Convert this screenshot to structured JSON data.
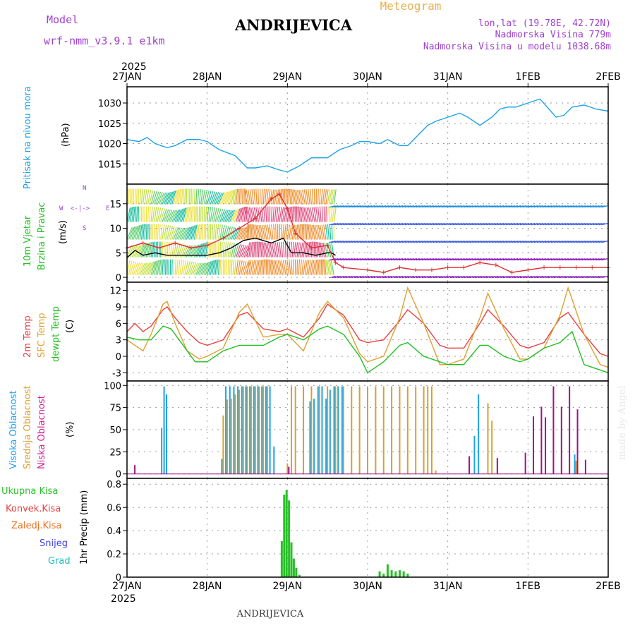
{
  "header": {
    "model_label": "Model",
    "model_name": "wrf-nmm_v3.9.1 e1km",
    "title": "ANDRIJEVICA",
    "subtitle": "Meteogram",
    "location": "lon,lat (19.78E, 42.72N)",
    "elevation": "Nadmorska Visina 779m",
    "model_elevation": "Nadmorska Visina u modelu 1038.68m",
    "watermark": "made by Angel",
    "footer": "ANDRIJEVICA"
  },
  "colors": {
    "pressure": "#1fa2e8",
    "wind_speed": "#000000",
    "wind_gust": "#e03030",
    "temp_2m": "#e84040",
    "temp_sfc": "#e0a030",
    "temp_dewpt": "#20c020",
    "cloud_high": "#1fa2e8",
    "cloud_mid": "#d8a030",
    "cloud_low": "#a0108a",
    "precip_total": "#28c028",
    "precip_conv": "#e03030",
    "precip_frz": "#f07020",
    "precip_snow": "#4040e0",
    "precip_grad": "#20c0c0",
    "label_purple": "#a040d0",
    "label_orange": "#e8b050"
  },
  "chart_data": {
    "time_axis": {
      "year_label": "2025",
      "ticks": [
        "27JAN",
        "28JAN",
        "29JAN",
        "30JAN",
        "31JAN",
        "1FEB",
        "2FEB"
      ],
      "range_days": [
        0,
        6
      ]
    },
    "panels": [
      {
        "id": "pressure",
        "type": "line",
        "labels": [
          "Pritisak na nivou mora",
          "(hPa)"
        ],
        "ylim": [
          1010,
          1034
        ],
        "yticks": [
          1015,
          1020,
          1025,
          1030
        ],
        "grid": true,
        "series": [
          {
            "x": [
              0,
              0.15,
              0.25,
              0.35,
              0.5,
              0.6,
              0.75,
              0.9,
              1.0,
              1.15,
              1.35,
              1.5,
              1.6,
              1.75,
              1.9,
              2.0,
              2.15,
              2.3,
              2.5,
              2.65,
              2.8,
              2.9,
              3.0,
              3.15,
              3.25,
              3.4,
              3.5,
              3.6,
              3.75,
              3.85,
              4.0,
              4.15,
              4.25,
              4.4,
              4.55,
              4.65,
              4.75,
              4.85,
              5.0,
              5.15,
              5.35,
              5.45,
              5.55,
              5.7,
              5.85,
              6.0
            ],
            "values": [
              1021,
              1020.5,
              1021.5,
              1020,
              1019,
              1019.5,
              1021,
              1021,
              1020.5,
              1018.5,
              1017,
              1014,
              1014,
              1014.5,
              1013.5,
              1013,
              1014.5,
              1016.5,
              1016.5,
              1018.5,
              1019.5,
              1020.5,
              1020.5,
              1020,
              1021,
              1019.5,
              1019.5,
              1021.5,
              1024.5,
              1025.5,
              1026.5,
              1027.5,
              1026.5,
              1024.5,
              1026.5,
              1028.5,
              1029,
              1029,
              1030,
              1031,
              1026.5,
              1027,
              1029,
              1029.5,
              1028.5,
              1028
            ]
          }
        ]
      },
      {
        "id": "wind",
        "type": "line",
        "labels": [
          "10m Vjetar",
          "Brzina i Pravac",
          "(m/s)"
        ],
        "compass": [
          "N",
          "W",
          "E",
          "S"
        ],
        "ylim": [
          -1,
          19
        ],
        "yticks": [
          0,
          5,
          10,
          15
        ],
        "grid": true,
        "series": [
          {
            "name": "speed",
            "x": [
              0,
              0.1,
              0.2,
              0.35,
              0.5,
              0.7,
              0.85,
              1.0,
              1.15,
              1.3,
              1.45,
              1.6,
              1.8,
              1.95,
              2.05,
              2.2,
              2.35,
              2.5,
              2.55,
              2.6
            ],
            "values": [
              4,
              5.5,
              4.5,
              5,
              4.5,
              4.5,
              4.5,
              4.5,
              5,
              6,
              7.5,
              8,
              7,
              8,
              5,
              5,
              4.5,
              5,
              5,
              4.5
            ]
          },
          {
            "name": "gust",
            "x": [
              0,
              0.2,
              0.4,
              0.6,
              0.8,
              1.0,
              1.2,
              1.4,
              1.6,
              1.8,
              1.9,
              2.0,
              2.1,
              2.3,
              2.5,
              2.6,
              2.7,
              3.0,
              3.2,
              3.4,
              3.6,
              3.8,
              4.0,
              4.2,
              4.4,
              4.6,
              4.8,
              5.0,
              5.2,
              5.4,
              5.6,
              5.8,
              6.0
            ],
            "values": [
              6,
              7,
              6,
              7,
              6,
              6.5,
              8,
              10,
              12,
              16,
              17,
              14,
              9,
              6,
              6.5,
              3,
              2,
              1.5,
              1,
              2,
              1.5,
              1.5,
              2,
              2,
              3,
              2.5,
              1,
              1.5,
              2,
              2,
              2,
              2,
              2
            ]
          }
        ]
      },
      {
        "id": "temperature",
        "type": "line",
        "labels": [
          "2m Temp",
          "SFC Temp",
          "dewpt Temp",
          "(C)"
        ],
        "ylim": [
          -4.5,
          13.5
        ],
        "yticks": [
          -3,
          0,
          3,
          6,
          9,
          12
        ],
        "grid": true,
        "series": [
          {
            "name": "2m Temp",
            "x": [
              0,
              0.1,
              0.2,
              0.3,
              0.45,
              0.5,
              0.6,
              0.75,
              0.9,
              1.0,
              1.2,
              1.4,
              1.5,
              1.7,
              1.9,
              2.0,
              2.2,
              2.4,
              2.5,
              2.7,
              2.9,
              3.0,
              3.2,
              3.4,
              3.5,
              3.7,
              3.9,
              4.0,
              4.2,
              4.4,
              4.5,
              4.7,
              4.9,
              5.0,
              5.2,
              5.4,
              5.5,
              5.7,
              5.9,
              6.0
            ],
            "values": [
              4.5,
              6,
              4.5,
              5.5,
              8.5,
              9,
              7,
              4.5,
              2.5,
              2,
              3,
              7.5,
              8,
              5,
              4.5,
              5,
              3.5,
              7,
              9.5,
              7.5,
              3,
              2.5,
              3,
              6.5,
              8.5,
              6,
              2,
              1.5,
              1.5,
              6,
              8.5,
              5.5,
              2,
              1.5,
              2.5,
              7,
              8,
              4,
              0.5,
              0
            ]
          },
          {
            "name": "SFC Temp",
            "x": [
              0,
              0.1,
              0.2,
              0.3,
              0.45,
              0.5,
              0.6,
              0.75,
              0.9,
              1.0,
              1.2,
              1.4,
              1.5,
              1.7,
              1.9,
              2.0,
              2.2,
              2.4,
              2.5,
              2.7,
              2.9,
              3.0,
              3.2,
              3.4,
              3.5,
              3.7,
              3.9,
              4.0,
              4.2,
              4.4,
              4.5,
              4.7,
              4.9,
              5.0,
              5.2,
              5.4,
              5.5,
              5.7,
              5.9,
              6.0
            ],
            "values": [
              3,
              2,
              1,
              4,
              9.5,
              10,
              6,
              1,
              -0.5,
              0,
              1.5,
              8,
              9.5,
              3.5,
              4,
              4,
              1,
              8,
              10,
              7,
              0.5,
              -1,
              0,
              7,
              12.5,
              6,
              -1.5,
              -1.5,
              -0.5,
              7,
              11.5,
              5,
              -0.5,
              -0.5,
              1.5,
              7.5,
              12.5,
              4,
              -1.5,
              -2
            ]
          },
          {
            "name": "dewpt Temp",
            "x": [
              0,
              0.15,
              0.3,
              0.45,
              0.55,
              0.7,
              0.85,
              1.0,
              1.2,
              1.4,
              1.5,
              1.7,
              1.9,
              2.0,
              2.2,
              2.4,
              2.5,
              2.7,
              2.9,
              3.0,
              3.2,
              3.4,
              3.5,
              3.7,
              3.9,
              4.0,
              4.2,
              4.4,
              4.5,
              4.7,
              4.9,
              5.0,
              5.2,
              5.4,
              5.55,
              5.7,
              5.9,
              6.0
            ],
            "values": [
              3.5,
              3,
              3,
              5.5,
              5,
              2,
              -1,
              -1,
              1,
              2,
              2,
              2,
              3.5,
              4,
              3,
              5,
              5.5,
              4,
              0,
              -3,
              -1,
              2,
              2.5,
              0,
              -1,
              -1.5,
              -1.5,
              2,
              2,
              0,
              -1,
              -0.5,
              1.5,
              2.5,
              4.5,
              -1.5,
              -2.5,
              -3
            ]
          }
        ]
      },
      {
        "id": "clouds",
        "type": "bar",
        "labels": [
          "Visoka Oblacnost",
          "Srednja Oblacnost",
          "Niska Oblacnost",
          "(%)"
        ],
        "ylim": [
          -5,
          105
        ],
        "yticks": [
          0,
          25,
          50,
          75,
          100
        ],
        "grid": true,
        "series": [
          {
            "name": "Visoka Oblacnost",
            "x": [
              0.45,
              0.48,
              0.51,
              1.2,
              1.25,
              1.3,
              1.35,
              1.4,
              1.45,
              1.5,
              1.55,
              1.6,
              1.65,
              1.7,
              1.75,
              1.8,
              1.85,
              2.3,
              2.35,
              2.4,
              2.45,
              2.5,
              2.55,
              2.6,
              2.65,
              2.7,
              4.35,
              4.4,
              5.6
            ],
            "values": [
              52,
              99,
              90,
              17,
              99,
              99,
              99,
              99,
              99,
              99,
              99,
              99,
              99,
              99,
              99,
              99,
              31,
              82,
              85,
              99,
              99,
              85,
              95,
              99,
              99,
              99,
              43,
              90,
              22
            ]
          },
          {
            "name": "Srednja Oblacnost",
            "x": [
              1.2,
              1.25,
              1.3,
              1.35,
              1.4,
              1.45,
              1.5,
              1.55,
              1.6,
              1.65,
              1.7,
              1.75,
              2.0,
              2.05,
              2.1,
              2.2,
              2.3,
              2.4,
              2.5,
              2.6,
              2.7,
              2.8,
              2.9,
              3.0,
              3.1,
              3.2,
              3.3,
              3.4,
              3.5,
              3.6,
              3.7,
              3.75,
              3.8,
              3.85,
              4.5,
              4.55,
              5.6
            ],
            "values": [
              66,
              84,
              85,
              90,
              95,
              99,
              99,
              99,
              99,
              99,
              99,
              99,
              12,
              99,
              99,
              99,
              99,
              99,
              99,
              99,
              99,
              99,
              99,
              99,
              99,
              99,
              99,
              99,
              99,
              99,
              99,
              99,
              99,
              4,
              80,
              60,
              15
            ]
          },
          {
            "name": "Niska Oblacnost",
            "x": [
              0.08,
              2.0,
              4.25,
              4.6,
              4.95,
              5.05,
              5.15,
              5.2,
              5.3,
              5.4,
              5.5,
              5.6,
              5.7
            ],
            "values": [
              10,
              8,
              20,
              18,
              24,
              65,
              76,
              64,
              99,
              76,
              99,
              73,
              16
            ]
          }
        ]
      },
      {
        "id": "precip",
        "type": "bar",
        "labels": [
          "Ukupna Kisa",
          "Konvek.Kisa",
          "Zaledj.Kisa",
          "Snijeg",
          "Grad",
          "1hr Precip (mm)"
        ],
        "ylim": [
          0,
          0.85
        ],
        "yticks": [
          0,
          0.2,
          0.4,
          0.6,
          0.8
        ],
        "grid": true,
        "series": [
          {
            "name": "Ukupna Kisa",
            "x": [
              1.93,
              1.96,
              1.99,
              2.02,
              2.05,
              2.08,
              2.11,
              2.15,
              3.15,
              3.2,
              3.25,
              3.3,
              3.35,
              3.4,
              3.45,
              3.5
            ],
            "values": [
              0.31,
              0.71,
              0.75,
              0.66,
              0.3,
              0.16,
              0.08,
              0.02,
              0.05,
              0.03,
              0.11,
              0.06,
              0.05,
              0.06,
              0.05,
              0.03
            ]
          }
        ]
      }
    ]
  }
}
